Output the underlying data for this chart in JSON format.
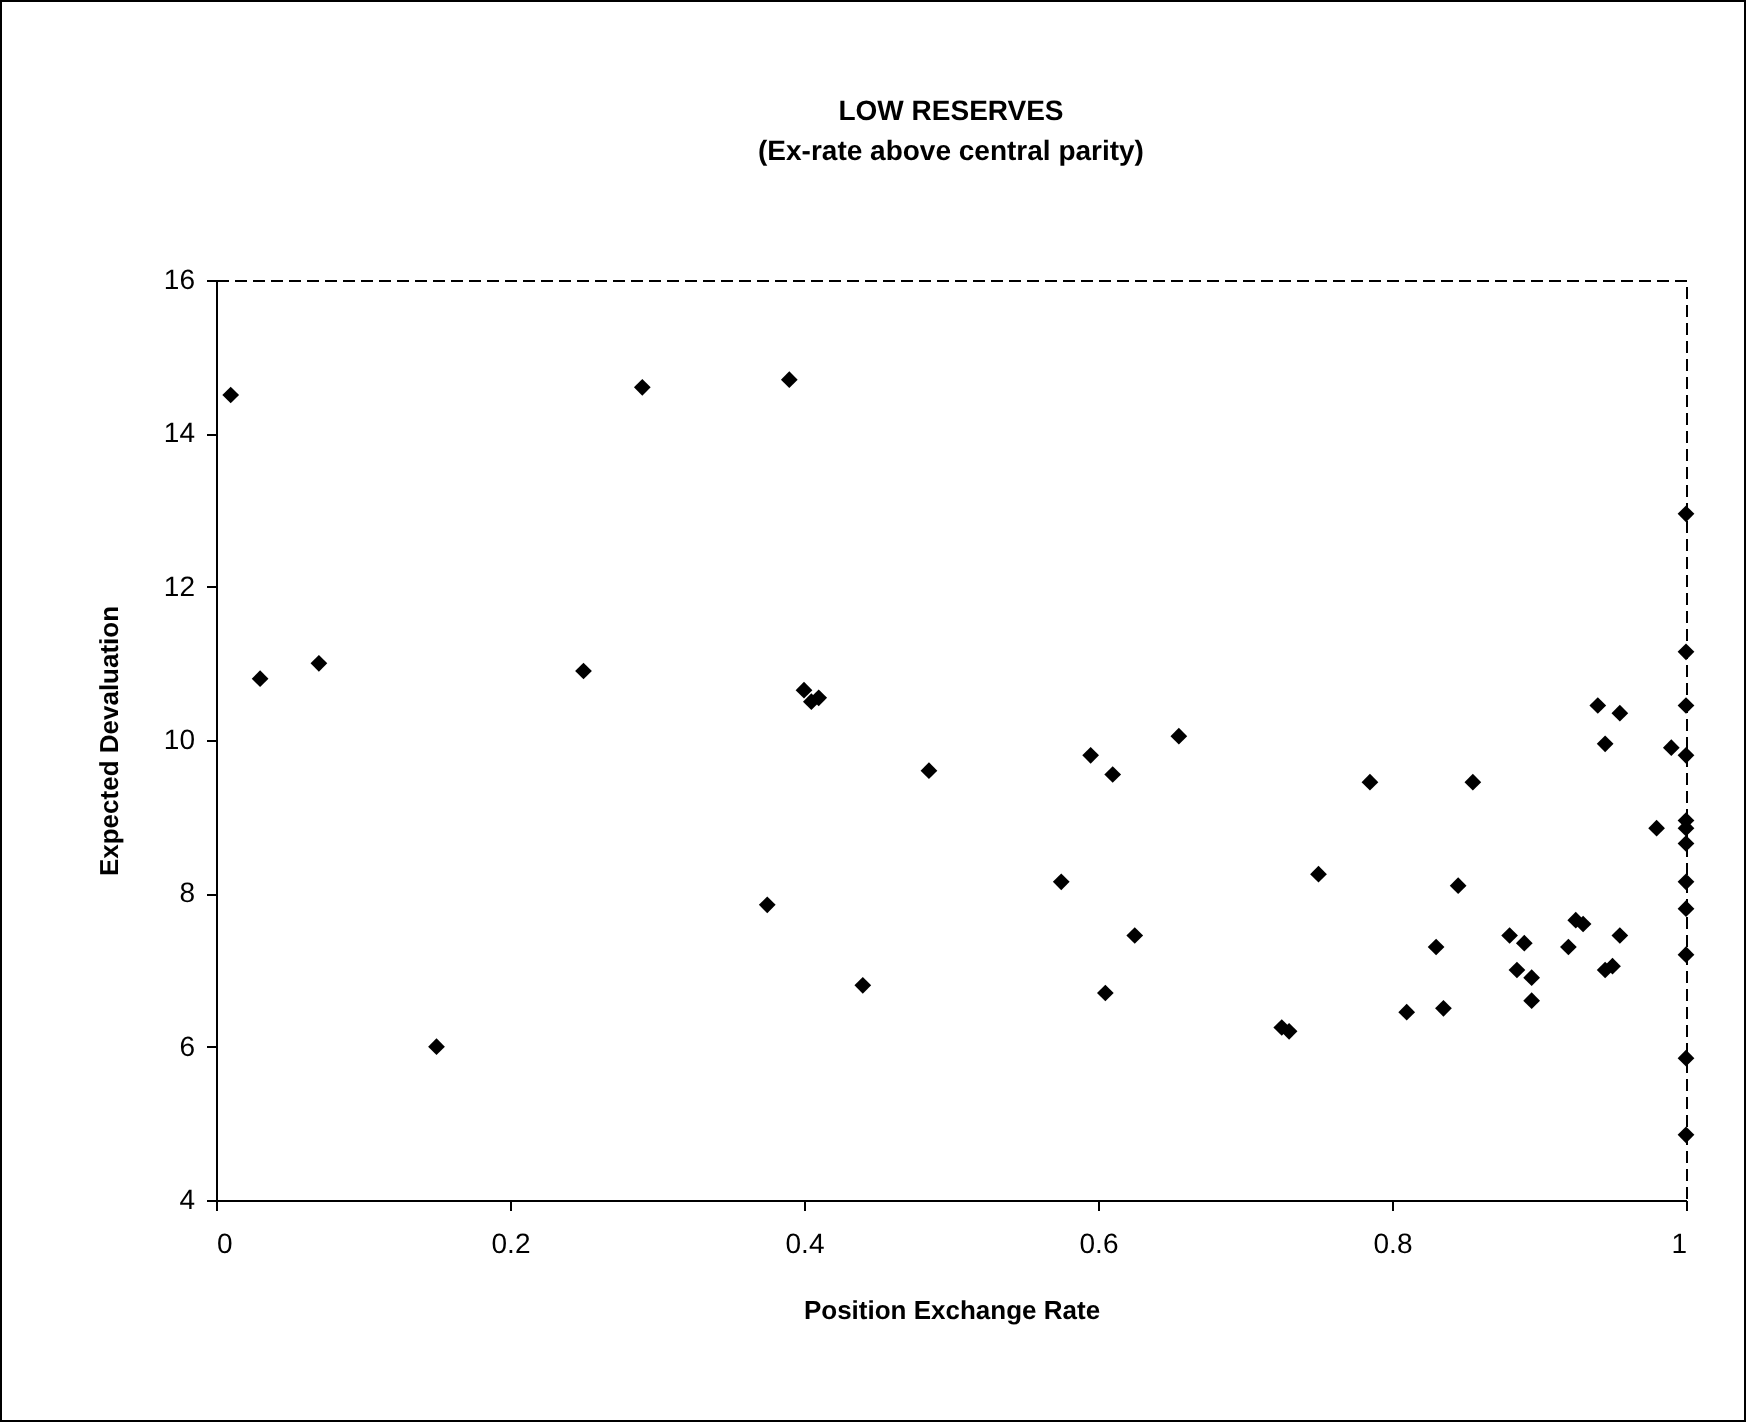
{
  "chart_data": {
    "type": "scatter",
    "title": "LOW RESERVES",
    "subtitle": "(Ex-rate above central parity)",
    "xlabel": "Position Exchange Rate",
    "ylabel": "Expected Devaluation",
    "marker": "diamond",
    "grid": false,
    "legend": false,
    "xlim": [
      0,
      1
    ],
    "xticks": [
      0,
      0.2,
      0.4,
      0.6,
      0.8,
      1
    ],
    "ylim": [
      4,
      16
    ],
    "yticks": [
      4,
      6,
      8,
      10,
      12,
      14,
      16
    ],
    "series": [
      {
        "color": "#000000",
        "x": [
          0.01,
          0.03,
          0.07,
          0.15,
          0.25,
          0.29,
          0.39,
          0.375,
          0.4,
          0.405,
          0.41,
          0.44,
          0.485,
          0.575,
          0.595,
          0.605,
          0.61,
          0.625,
          0.655,
          0.725,
          0.73,
          0.75,
          0.785,
          0.81,
          0.83,
          0.835,
          0.845,
          0.855,
          0.88,
          0.885,
          0.89,
          0.895,
          0.895,
          0.92,
          0.925,
          0.93,
          0.94,
          0.945,
          0.945,
          0.95,
          0.955,
          0.955,
          0.98,
          0.99,
          1,
          1,
          1,
          1,
          1,
          1,
          1,
          1,
          1,
          1,
          1,
          1
        ],
        "values": [
          14.5,
          10.8,
          11.0,
          6.0,
          10.9,
          14.6,
          14.7,
          7.85,
          10.65,
          10.5,
          10.55,
          6.8,
          9.6,
          8.15,
          9.8,
          6.7,
          9.55,
          7.45,
          10.05,
          6.25,
          6.2,
          8.25,
          9.45,
          6.45,
          7.3,
          6.5,
          8.1,
          9.45,
          7.45,
          7.0,
          7.35,
          6.9,
          6.6,
          7.3,
          7.65,
          7.6,
          10.45,
          9.95,
          7.0,
          7.05,
          7.45,
          10.35,
          8.85,
          9.9,
          12.95,
          11.15,
          10.45,
          9.8,
          8.95,
          8.85,
          8.65,
          8.15,
          7.8,
          7.2,
          5.85,
          4.85
        ]
      }
    ]
  }
}
